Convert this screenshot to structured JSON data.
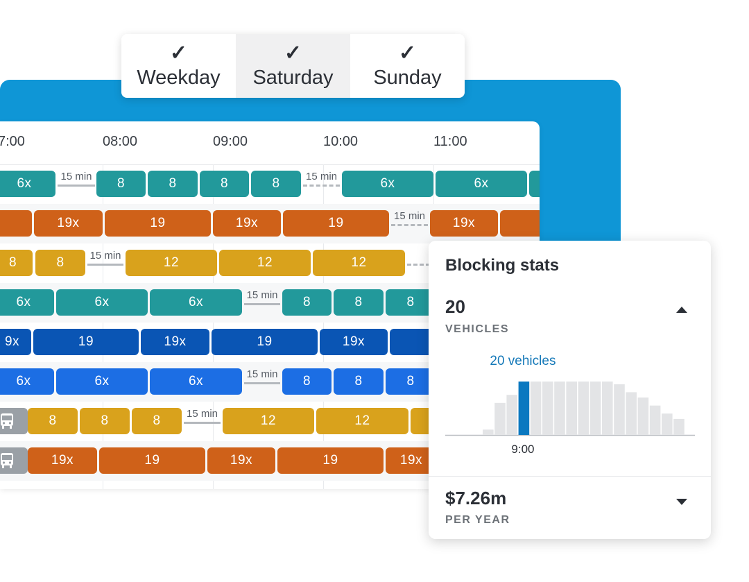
{
  "day_tabs": [
    {
      "label": "Weekday",
      "checked": true,
      "active": false
    },
    {
      "label": "Saturday",
      "checked": true,
      "active": true
    },
    {
      "label": "Sunday",
      "checked": true,
      "active": false
    }
  ],
  "schedule": {
    "times": [
      "7:00",
      "08:00",
      "09:00",
      "10:00",
      "11:00"
    ],
    "colors": {
      "teal": "#22999b",
      "orange": "#cf6119",
      "gold": "#d9a21c",
      "navy": "#0a55b4",
      "blue": "#1c6ee4",
      "gray": "#9aa0a6"
    },
    "rows": [
      {
        "items": [
          {
            "kind": "block",
            "color": "teal",
            "label": "6x"
          },
          {
            "kind": "gap",
            "label": "15 min",
            "style": "solid"
          },
          {
            "kind": "block",
            "color": "teal",
            "label": "8"
          },
          {
            "kind": "block",
            "color": "teal",
            "label": "8"
          },
          {
            "kind": "block",
            "color": "teal",
            "label": "8"
          },
          {
            "kind": "block",
            "color": "teal",
            "label": "8"
          },
          {
            "kind": "gap",
            "label": "15 min",
            "style": "dashed"
          },
          {
            "kind": "block",
            "color": "teal",
            "label": "6x"
          },
          {
            "kind": "block",
            "color": "teal",
            "label": "6x"
          },
          {
            "kind": "block",
            "color": "teal",
            "label": ""
          }
        ]
      },
      {
        "items": [
          {
            "kind": "block",
            "color": "orange",
            "label": ""
          },
          {
            "kind": "block",
            "color": "orange",
            "label": "19x"
          },
          {
            "kind": "block",
            "color": "orange",
            "label": "19"
          },
          {
            "kind": "block",
            "color": "orange",
            "label": "19x"
          },
          {
            "kind": "block",
            "color": "orange",
            "label": "19"
          },
          {
            "kind": "gap",
            "label": "15 min",
            "style": "dashed"
          },
          {
            "kind": "block",
            "color": "orange",
            "label": "19x"
          },
          {
            "kind": "block",
            "color": "orange",
            "label": ""
          }
        ]
      },
      {
        "items": [
          {
            "kind": "block",
            "color": "gold",
            "label": "8"
          },
          {
            "kind": "block",
            "color": "gold",
            "label": "8"
          },
          {
            "kind": "gap",
            "label": "15 min",
            "style": "solid"
          },
          {
            "kind": "block",
            "color": "gold",
            "label": "12"
          },
          {
            "kind": "block",
            "color": "gold",
            "label": "12"
          },
          {
            "kind": "block",
            "color": "gold",
            "label": "12"
          },
          {
            "kind": "gap",
            "label": "",
            "style": "dashed"
          }
        ]
      },
      {
        "items": [
          {
            "kind": "block",
            "color": "teal",
            "label": "6x"
          },
          {
            "kind": "block",
            "color": "teal",
            "label": "6x"
          },
          {
            "kind": "block",
            "color": "teal",
            "label": "6x"
          },
          {
            "kind": "gap",
            "label": "15 min",
            "style": "solid"
          },
          {
            "kind": "block",
            "color": "teal",
            "label": "8"
          },
          {
            "kind": "block",
            "color": "teal",
            "label": "8"
          },
          {
            "kind": "block",
            "color": "teal",
            "label": "8"
          }
        ]
      },
      {
        "items": [
          {
            "kind": "block",
            "color": "navy",
            "label": "9x"
          },
          {
            "kind": "block",
            "color": "navy",
            "label": "19"
          },
          {
            "kind": "block",
            "color": "navy",
            "label": "19x"
          },
          {
            "kind": "block",
            "color": "navy",
            "label": "19"
          },
          {
            "kind": "block",
            "color": "navy",
            "label": "19x"
          },
          {
            "kind": "block",
            "color": "navy",
            "label": ""
          }
        ]
      },
      {
        "items": [
          {
            "kind": "block",
            "color": "blue",
            "label": "6x"
          },
          {
            "kind": "block",
            "color": "blue",
            "label": "6x"
          },
          {
            "kind": "block",
            "color": "blue",
            "label": "6x"
          },
          {
            "kind": "gap",
            "label": "15 min",
            "style": "solid"
          },
          {
            "kind": "block",
            "color": "blue",
            "label": "8"
          },
          {
            "kind": "block",
            "color": "blue",
            "label": "8"
          },
          {
            "kind": "block",
            "color": "blue",
            "label": "8"
          }
        ]
      },
      {
        "items": [
          {
            "kind": "bus",
            "color": "gray",
            "icon": "bus-icon"
          },
          {
            "kind": "block",
            "color": "gold",
            "label": "8"
          },
          {
            "kind": "block",
            "color": "gold",
            "label": "8"
          },
          {
            "kind": "block",
            "color": "gold",
            "label": "8"
          },
          {
            "kind": "gap",
            "label": "15 min",
            "style": "solid"
          },
          {
            "kind": "block",
            "color": "gold",
            "label": "12"
          },
          {
            "kind": "block",
            "color": "gold",
            "label": "12"
          },
          {
            "kind": "block",
            "color": "gold",
            "label": ""
          }
        ]
      },
      {
        "items": [
          {
            "kind": "bus",
            "color": "gray",
            "icon": "bus-icon"
          },
          {
            "kind": "block",
            "color": "orange",
            "label": "19x"
          },
          {
            "kind": "block",
            "color": "orange",
            "label": "19"
          },
          {
            "kind": "block",
            "color": "orange",
            "label": "19x"
          },
          {
            "kind": "block",
            "color": "orange",
            "label": "19"
          },
          {
            "kind": "block",
            "color": "orange",
            "label": "19x"
          }
        ]
      }
    ]
  },
  "stats": {
    "title": "Blocking stats",
    "vehicles": {
      "value": "20",
      "unit": "VEHICLES",
      "expanded": true
    },
    "cost": {
      "value": "$7.26m",
      "unit": "PER YEAR",
      "expanded": false
    },
    "highlight_color": "#0a78c0",
    "chart_data": {
      "type": "bar",
      "values": [
        2,
        12,
        15,
        20,
        20,
        20,
        20,
        20,
        20,
        20,
        20,
        19,
        16,
        14,
        11,
        8,
        6
      ],
      "highlight_index": 3,
      "annotation": "20 vehicles",
      "tick_label": "9:00",
      "tick_index": 3
    }
  }
}
